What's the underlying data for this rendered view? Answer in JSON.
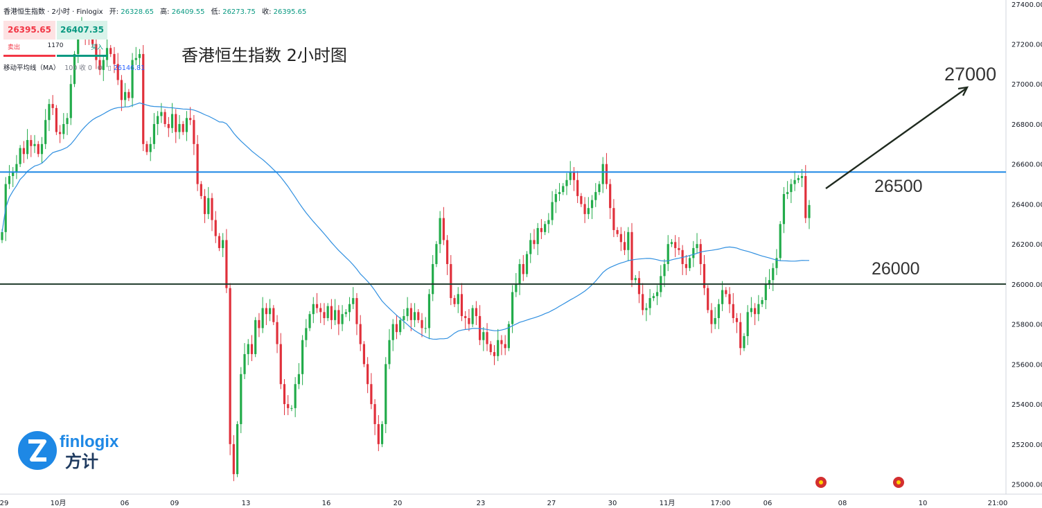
{
  "header": {
    "symbol": "香港恒生指数 · 2小时 · Finlogix",
    "open_label": "开:",
    "open": "26328.65",
    "high_label": "高:",
    "high": "26409.55",
    "low_label": "低:",
    "low": "26273.75",
    "close_label": "收:",
    "close": "26395.65"
  },
  "trade": {
    "sell_price": "26395.65",
    "buy_price": "26407.35",
    "sell_label": "卖出",
    "buy_label": "买入",
    "quantity": "1170"
  },
  "indicator": {
    "name": "移动平均线（MA）",
    "params": "100 收 0",
    "value": "26146.81"
  },
  "brand": {
    "name": "finlogix",
    "name_cn": "方计"
  },
  "colors": {
    "up": "#22ab4a",
    "down": "#e0303b",
    "ma_line": "#2f8fe0",
    "resistance": "#1e88e5",
    "support": "#1f3a2b",
    "arrow": "#1f2a1f"
  },
  "chart_data": {
    "type": "candlestick",
    "title": "香港恒生指数 2小时图",
    "y_axis": {
      "min": 24950,
      "max": 27420,
      "ticks": [
        "27400.00",
        "27200.00",
        "27000.00",
        "26800.00",
        "26600.00",
        "26400.00",
        "26200.00",
        "26000.00",
        "25800.00",
        "25600.00",
        "25400.00",
        "25200.00",
        "25000.00"
      ],
      "position": "right"
    },
    "x_axis": {
      "ticks": [
        "29",
        "10月",
        "06",
        "09",
        "13",
        "16",
        "20",
        "23",
        "27",
        "30",
        "11月",
        "17:00",
        "06",
        "08",
        "10",
        "21:00"
      ]
    },
    "levels": [
      {
        "label": "",
        "value": 26560,
        "role": "resistance"
      },
      {
        "label": "26000",
        "value": 26000,
        "role": "support"
      }
    ],
    "annotations": [
      {
        "text": "26500"
      },
      {
        "text": "27000"
      }
    ],
    "ma_period": 100,
    "ma_last": 26146.81,
    "close_series": [
      26260,
      26500,
      26540,
      26560,
      26600,
      26680,
      26650,
      26720,
      26690,
      26700,
      26650,
      26700,
      26820,
      26900,
      26880,
      26760,
      26750,
      26800,
      26830,
      27000,
      27150,
      27250,
      27280,
      27250,
      27230,
      27200,
      27120,
      27070,
      27120,
      27180,
      27150,
      27100,
      27020,
      26920,
      26960,
      26930,
      27120,
      27130,
      27150,
      26700,
      26660,
      26700,
      26800,
      26840,
      26860,
      26800,
      26780,
      26850,
      26760,
      26800,
      26760,
      26830,
      26820,
      26700,
      26500,
      26440,
      26350,
      26430,
      26320,
      26240,
      26180,
      26220,
      25980,
      25200,
      25050,
      25300,
      25550,
      25650,
      25700,
      25650,
      25820,
      25780,
      25880,
      25850,
      25880,
      25810,
      25700,
      25500,
      25400,
      25380,
      25380,
      25500,
      25550,
      25720,
      25780,
      25850,
      25900,
      25880,
      25860,
      25830,
      25890,
      25820,
      25870,
      25800,
      25850,
      25860,
      25900,
      25930,
      25800,
      25700,
      25600,
      25500,
      25400,
      25300,
      25200,
      25300,
      25600,
      25720,
      25800,
      25760,
      25820,
      25840,
      25880,
      25820,
      25860,
      25820,
      25780,
      25780,
      25950,
      26100,
      26200,
      26330,
      26220,
      26100,
      25930,
      25900,
      25950,
      25840,
      25830,
      25800,
      25880,
      25840,
      25720,
      25760,
      25700,
      25660,
      25640,
      25720,
      25700,
      25680,
      25800,
      25960,
      26000,
      26100,
      26050,
      26150,
      26220,
      26200,
      26280,
      26260,
      26300,
      26320,
      26410,
      26450,
      26460,
      26490,
      26520,
      26560,
      26520,
      26440,
      26400,
      26350,
      26380,
      26420,
      26460,
      26500,
      26600,
      26500,
      26380,
      26270,
      26250,
      26210,
      26170,
      26260,
      26020,
      26030,
      25950,
      25870,
      25880,
      25930,
      25940,
      25960,
      26040,
      26100,
      26200,
      26210,
      26180,
      26170,
      26100,
      26080,
      26130,
      26180,
      26200,
      26100,
      25980,
      25870,
      25800,
      25830,
      25900,
      25970,
      25950,
      25900,
      25830,
      25810,
      25680,
      25740,
      25860,
      25880,
      25850,
      25900,
      25920,
      26000,
      26020,
      26080,
      26130,
      26300,
      26450,
      26460,
      26500,
      26520,
      26530,
      26540,
      26330,
      26395
    ]
  }
}
